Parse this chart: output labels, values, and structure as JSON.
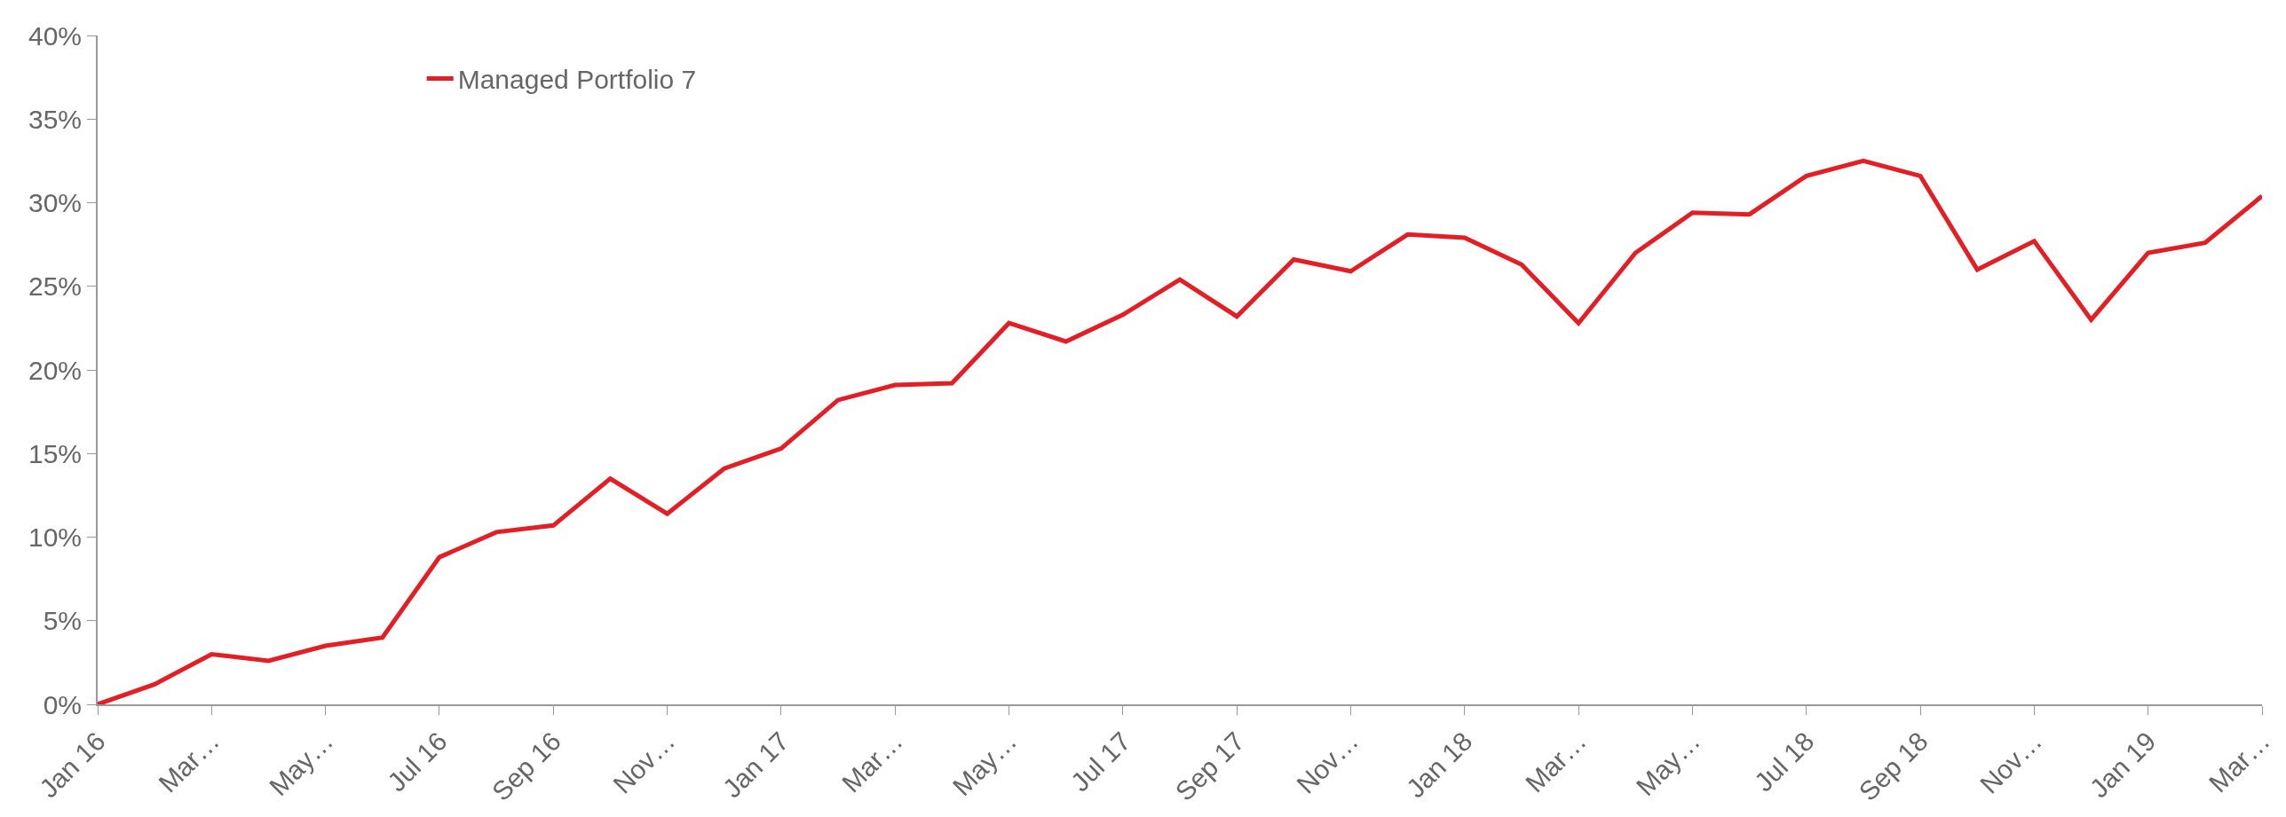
{
  "chart_data": {
    "type": "line",
    "categories": [
      "Jan 16",
      null,
      "Mar…",
      null,
      "May…",
      null,
      "Jul 16",
      null,
      "Sep 16",
      null,
      "Nov…",
      null,
      "Jan 17",
      null,
      "Mar…",
      null,
      "May…",
      null,
      "Jul 17",
      null,
      "Sep 17",
      null,
      "Nov…",
      null,
      "Jan 18",
      null,
      "Mar…",
      null,
      "May…",
      null,
      "Jul 18",
      null,
      "Sep 18",
      null,
      "Nov…",
      null,
      "Jan 19",
      null,
      "Mar…"
    ],
    "series": [
      {
        "name": "Managed Portfolio 7",
        "color": "#e31e24",
        "values": [
          0,
          1.2,
          3.0,
          2.6,
          3.5,
          4.0,
          8.8,
          10.3,
          10.7,
          13.5,
          11.4,
          14.1,
          15.3,
          18.2,
          19.1,
          19.2,
          22.8,
          21.7,
          23.3,
          25.4,
          23.2,
          26.6,
          25.9,
          28.1,
          27.9,
          26.3,
          22.8,
          27.0,
          29.4,
          29.3,
          31.6,
          32.5,
          31.6,
          26.0,
          27.7,
          23.0,
          27.0,
          27.6,
          30.4
        ]
      }
    ],
    "ylim": [
      0,
      40
    ],
    "yticks": [
      {
        "value": 0,
        "label": "0%"
      },
      {
        "value": 5,
        "label": "5%"
      },
      {
        "value": 10,
        "label": "10%"
      },
      {
        "value": 15,
        "label": "15%"
      },
      {
        "value": 20,
        "label": "20%"
      },
      {
        "value": 25,
        "label": "25%"
      },
      {
        "value": 30,
        "label": "30%"
      },
      {
        "value": 35,
        "label": "35%"
      },
      {
        "value": 40,
        "label": "40%"
      }
    ],
    "grid": false,
    "legend": "top left",
    "marker": "none",
    "line_style": "solid"
  }
}
